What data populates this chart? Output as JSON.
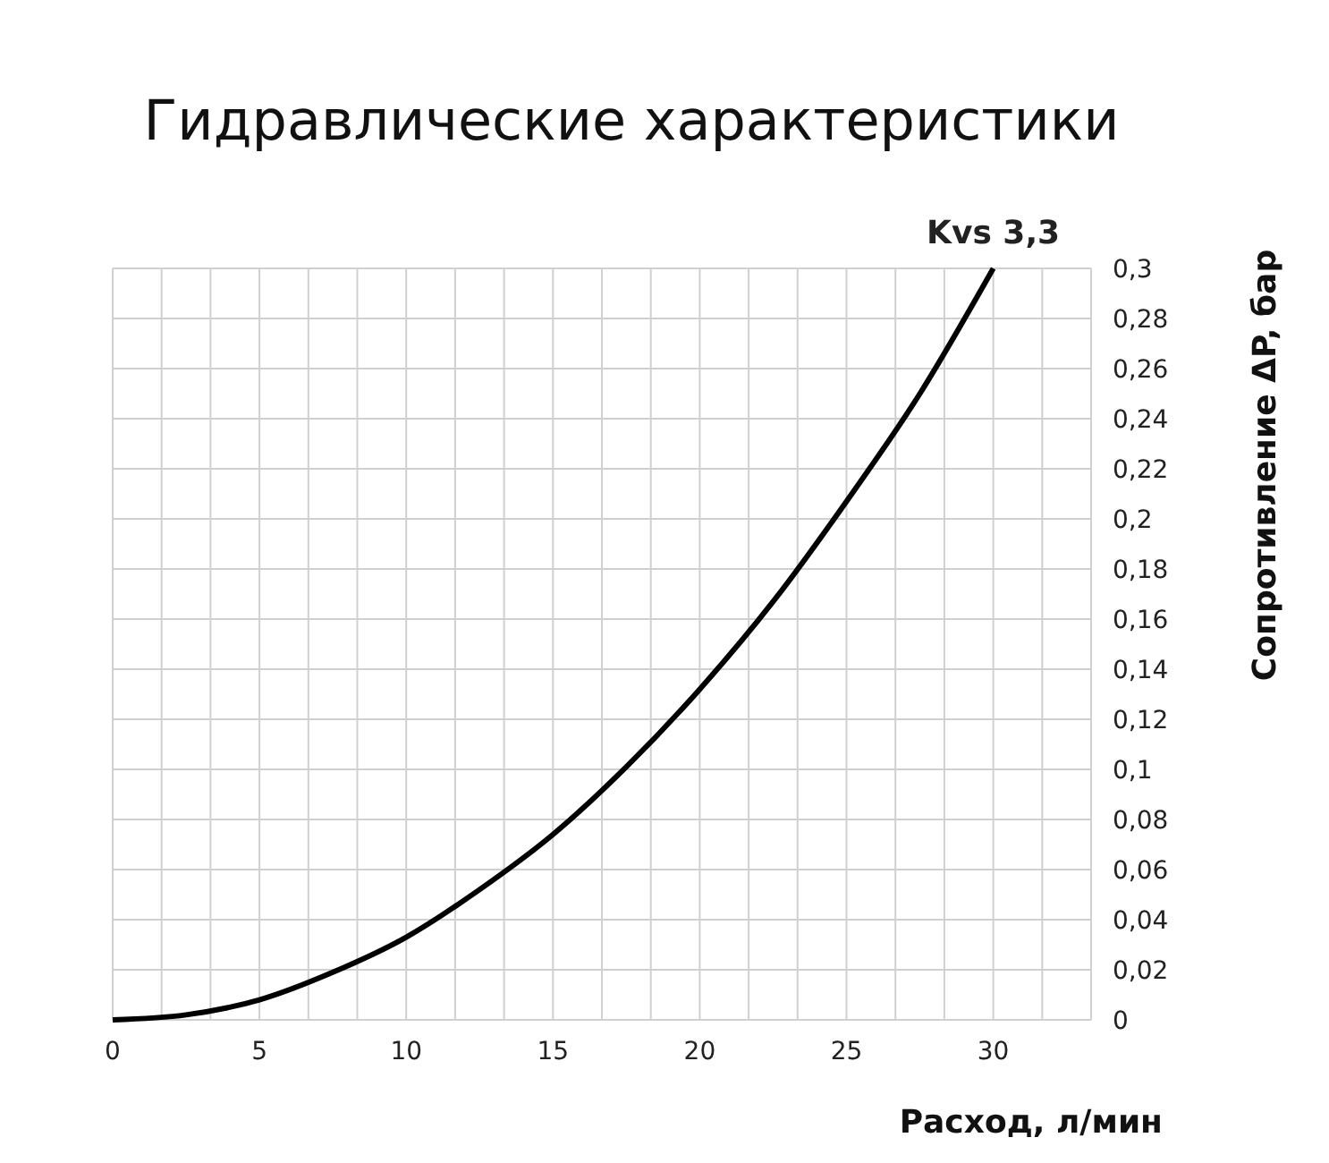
{
  "chart_data": {
    "type": "line",
    "title": "Гидравлические характеристики",
    "xlabel": "Расход, л/мин",
    "ylabel": "Сопротивление ΔP, бар",
    "x": [
      0,
      2.5,
      5,
      7.5,
      10,
      12.5,
      15,
      17.5,
      20,
      22.5,
      25,
      27.5,
      30
    ],
    "series": [
      {
        "name": "Kvs 3,3",
        "color": "#000000",
        "values": [
          0,
          0.002,
          0.008,
          0.019,
          0.033,
          0.052,
          0.074,
          0.101,
          0.132,
          0.167,
          0.207,
          0.25,
          0.3
        ]
      }
    ],
    "xlim": [
      0,
      33.333
    ],
    "xticks": [
      0,
      {
        "value": 1.667,
        "label": null
      },
      {
        "value": 3.333,
        "label": null
      },
      5,
      {
        "value": 6.667,
        "label": null
      },
      {
        "value": 8.333,
        "label": null
      },
      10,
      {
        "value": 11.667,
        "label": null
      },
      {
        "value": 13.333,
        "label": null
      },
      15,
      {
        "value": 16.667,
        "label": null
      },
      {
        "value": 18.333,
        "label": null
      },
      20,
      {
        "value": 21.667,
        "label": null
      },
      {
        "value": 23.333,
        "label": null
      },
      25,
      {
        "value": 26.667,
        "label": null
      },
      {
        "value": 28.333,
        "label": null
      },
      30,
      {
        "value": 31.667,
        "label": null
      },
      {
        "value": 33.333,
        "label": null
      }
    ],
    "ylim": [
      0,
      0.3
    ],
    "yticks": [
      {
        "value": 0,
        "label": "0"
      },
      {
        "value": 0.02,
        "label": "0,02"
      },
      {
        "value": 0.04,
        "label": "0,04"
      },
      {
        "value": 0.06,
        "label": "0,06"
      },
      {
        "value": 0.08,
        "label": "0,08"
      },
      {
        "value": 0.1,
        "label": "0,1"
      },
      {
        "value": 0.12,
        "label": "0,12"
      },
      {
        "value": 0.14,
        "label": "0,14"
      },
      {
        "value": 0.16,
        "label": "0,16"
      },
      {
        "value": 0.18,
        "label": "0,18"
      },
      {
        "value": 0.2,
        "label": "0,2"
      },
      {
        "value": 0.22,
        "label": "0,22"
      },
      {
        "value": 0.24,
        "label": "0,24"
      },
      {
        "value": 0.26,
        "label": "0,26"
      },
      {
        "value": 0.28,
        "label": "0,28"
      },
      {
        "value": 0.3,
        "label": "0,3"
      }
    ],
    "grid": true,
    "marker": "none",
    "line_style": "solid"
  }
}
